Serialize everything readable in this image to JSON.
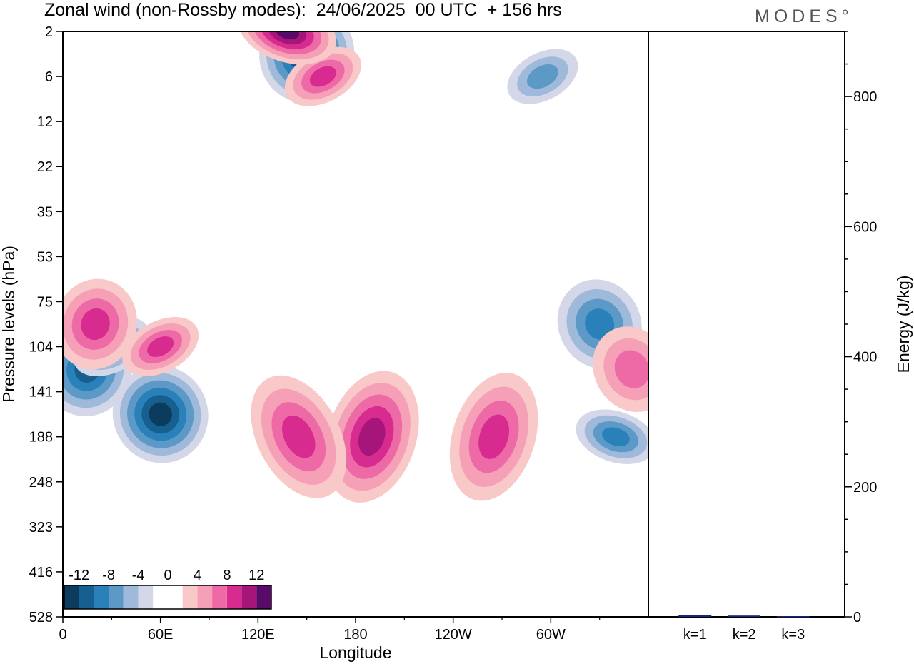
{
  "header": {
    "title": "Zonal wind (non-Rossby modes):  24/06/2025  00 UTC  + 156 hrs",
    "brand": "MODES°"
  },
  "chart_data": [
    {
      "type": "heatmap",
      "title": "Zonal wind (non-Rossby modes):  24/06/2025  00 UTC  + 156 hrs",
      "xlabel": "Longitude",
      "ylabel": "Pressure levels (hPa)",
      "x_tick_labels": [
        "0",
        "60E",
        "120E",
        "180",
        "120W",
        "60W"
      ],
      "x_tick_values_deg": [
        0,
        60,
        120,
        180,
        240,
        300
      ],
      "x_range_deg": [
        0,
        360
      ],
      "y_tick_labels": [
        "2",
        "6",
        "12",
        "22",
        "35",
        "53",
        "75",
        "104",
        "141",
        "188",
        "248",
        "323",
        "416",
        "528"
      ],
      "y_scale": "pressure levels (top 2 hPa, bottom 528 hPa)",
      "colorbar": {
        "labels": [
          "-12",
          "-8",
          "-4",
          "0",
          "4",
          "8",
          "12"
        ],
        "colors": [
          "#0b3c5d",
          "#175f8e",
          "#2a80b9",
          "#5d99c6",
          "#9fb9da",
          "#d4d7e8",
          "#ffffff",
          "#ffffff",
          "#f9c8c8",
          "#f6a0b8",
          "#ee6aa6",
          "#d82b8f",
          "#a5157a",
          "#5a0a68"
        ],
        "placement": "bottom-left inside plot"
      },
      "features": [
        {
          "sign": "negative",
          "lon": 60,
          "level": "141-188",
          "peak": -12
        },
        {
          "sign": "negative",
          "lon": 15,
          "level": "104-141",
          "peak": -10
        },
        {
          "sign": "negative",
          "lon": 30,
          "level": "104",
          "peak": -8
        },
        {
          "sign": "negative",
          "lon": 340,
          "level": "188",
          "peak": -8
        },
        {
          "sign": "negative",
          "lon": 330,
          "level": "75-104",
          "peak": -8
        },
        {
          "sign": "negative",
          "lon": 150,
          "level": "2-6",
          "peak": -12
        },
        {
          "sign": "negative",
          "lon": 295,
          "level": "6",
          "peak": -6
        },
        {
          "sign": "positive",
          "lon": 190,
          "level": "141-248",
          "peak": 10
        },
        {
          "sign": "positive",
          "lon": 145,
          "level": "141-248",
          "peak": 8
        },
        {
          "sign": "positive",
          "lon": 265,
          "level": "141-248",
          "peak": 8
        },
        {
          "sign": "positive",
          "lon": 60,
          "level": "104",
          "peak": 8
        },
        {
          "sign": "positive",
          "lon": 20,
          "level": "75-104",
          "peak": 8
        },
        {
          "sign": "positive",
          "lon": 160,
          "level": "6",
          "peak": 8
        },
        {
          "sign": "positive",
          "lon": 138,
          "level": "2",
          "peak": 14
        },
        {
          "sign": "positive",
          "lon": 350,
          "level": "104-141",
          "peak": 6
        }
      ]
    },
    {
      "type": "bar",
      "categories": [
        "k=1",
        "k=2",
        "k=3"
      ],
      "values": [
        3,
        2,
        1
      ],
      "ylabel": "Energy (J/kg)",
      "ylim": [
        0,
        900
      ],
      "y_tick_labels": [
        "0",
        "200",
        "400",
        "600",
        "800"
      ],
      "y_tick_values": [
        0,
        200,
        400,
        600,
        800
      ],
      "bar_color": "#1a237e"
    }
  ]
}
